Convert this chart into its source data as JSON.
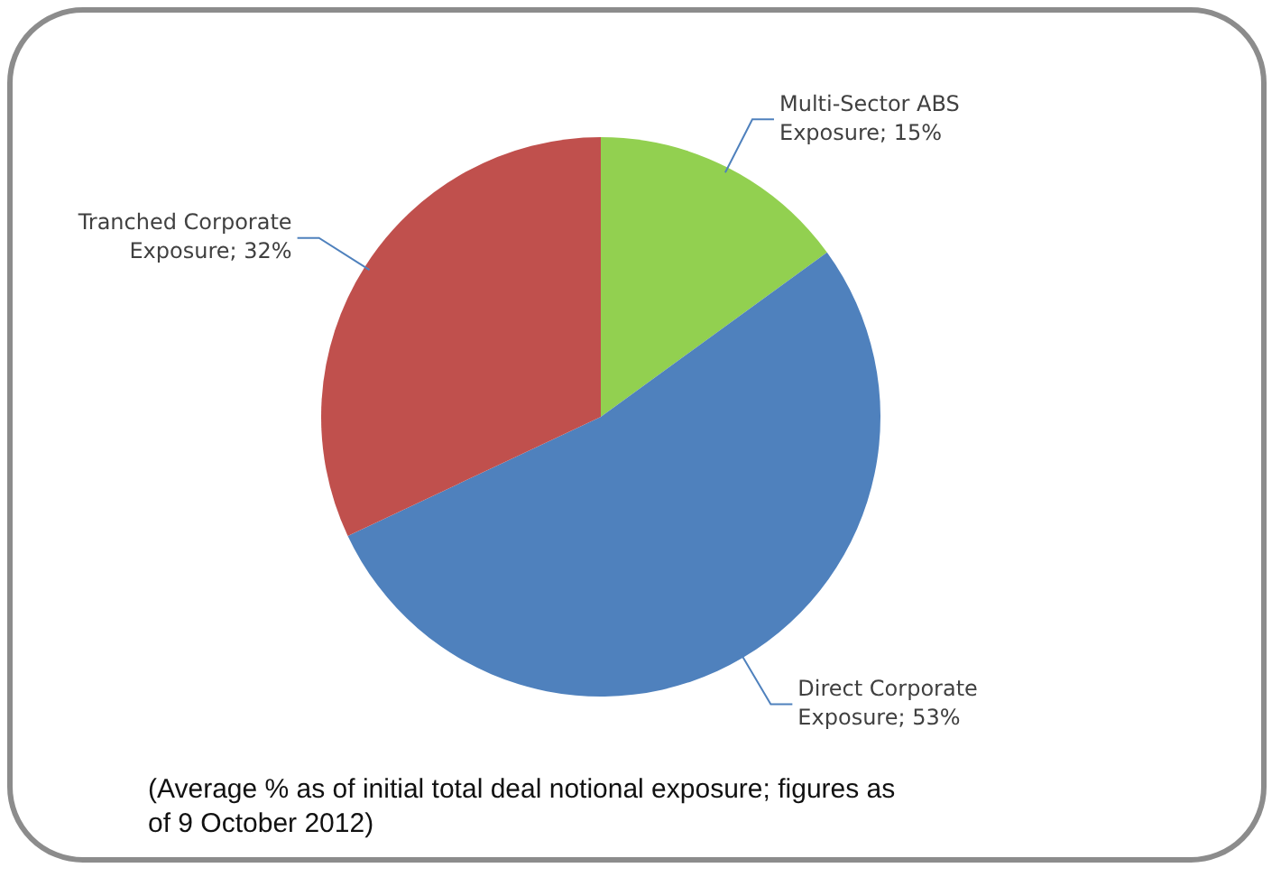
{
  "chart_data": {
    "type": "pie",
    "categories": [
      "Multi-Sector ABS Exposure",
      "Direct Corporate Exposure",
      "Tranched Corporate Exposure"
    ],
    "values": [
      15,
      53,
      32
    ],
    "colors": [
      "#92d050",
      "#4f81bd",
      "#c0504d"
    ],
    "value_labels": [
      "15%",
      "53%",
      "32%"
    ],
    "legend": false,
    "annotations": [
      "(Average % as of initial total deal notional exposure; figures as of 9 October 2012)"
    ]
  }
}
